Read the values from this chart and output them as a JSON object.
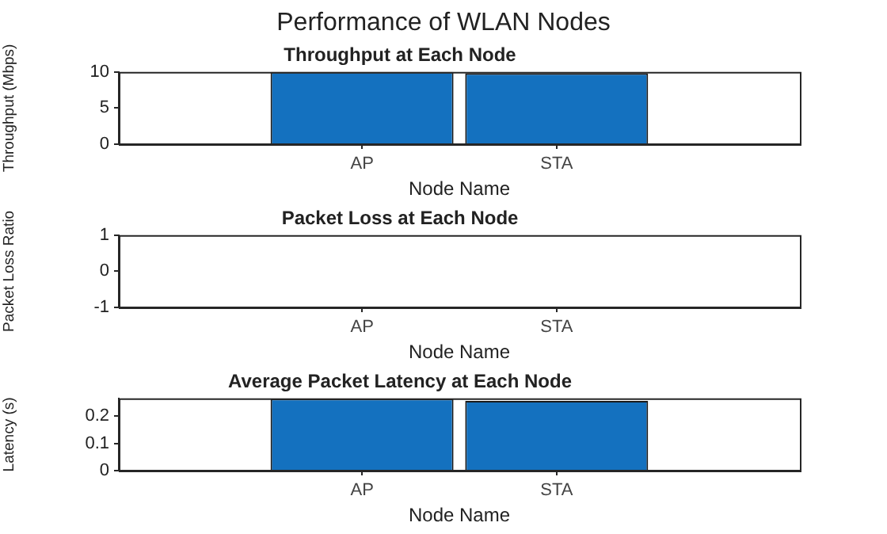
{
  "chart_data": [
    {
      "type": "bar",
      "title": "Throughput at Each Node",
      "xlabel": "Node Name",
      "ylabel": "Throughput (Mbps)",
      "annotations": [
        "Performance of WLAN Nodes"
      ],
      "categories": [
        "AP",
        "STA"
      ],
      "series": [
        {
          "color": "#1471bf",
          "values": [
            10,
            9.8
          ]
        }
      ],
      "ylim": [
        0,
        10
      ],
      "yticks": [
        0,
        5,
        10
      ],
      "grid": false,
      "legend": false
    },
    {
      "type": "bar",
      "title": "Packet Loss at Each Node",
      "xlabel": "Node Name",
      "ylabel": "Packet Loss Ratio",
      "categories": [
        "AP",
        "STA"
      ],
      "series": [
        {
          "color": "#1471bf",
          "values": [
            0,
            0
          ]
        }
      ],
      "ylim": [
        -1,
        1
      ],
      "yticks": [
        -1,
        0,
        1
      ],
      "grid": false,
      "legend": false
    },
    {
      "type": "bar",
      "title": "Average Packet Latency at Each Node",
      "xlabel": "Node Name",
      "ylabel": "Latency (s)",
      "categories": [
        "AP",
        "STA"
      ],
      "series": [
        {
          "color": "#1471bf",
          "values": [
            0.264,
            0.256
          ]
        }
      ],
      "ylim": [
        0,
        0.265
      ],
      "yticks": [
        0,
        0.1,
        0.2
      ],
      "grid": false,
      "legend": false
    }
  ]
}
